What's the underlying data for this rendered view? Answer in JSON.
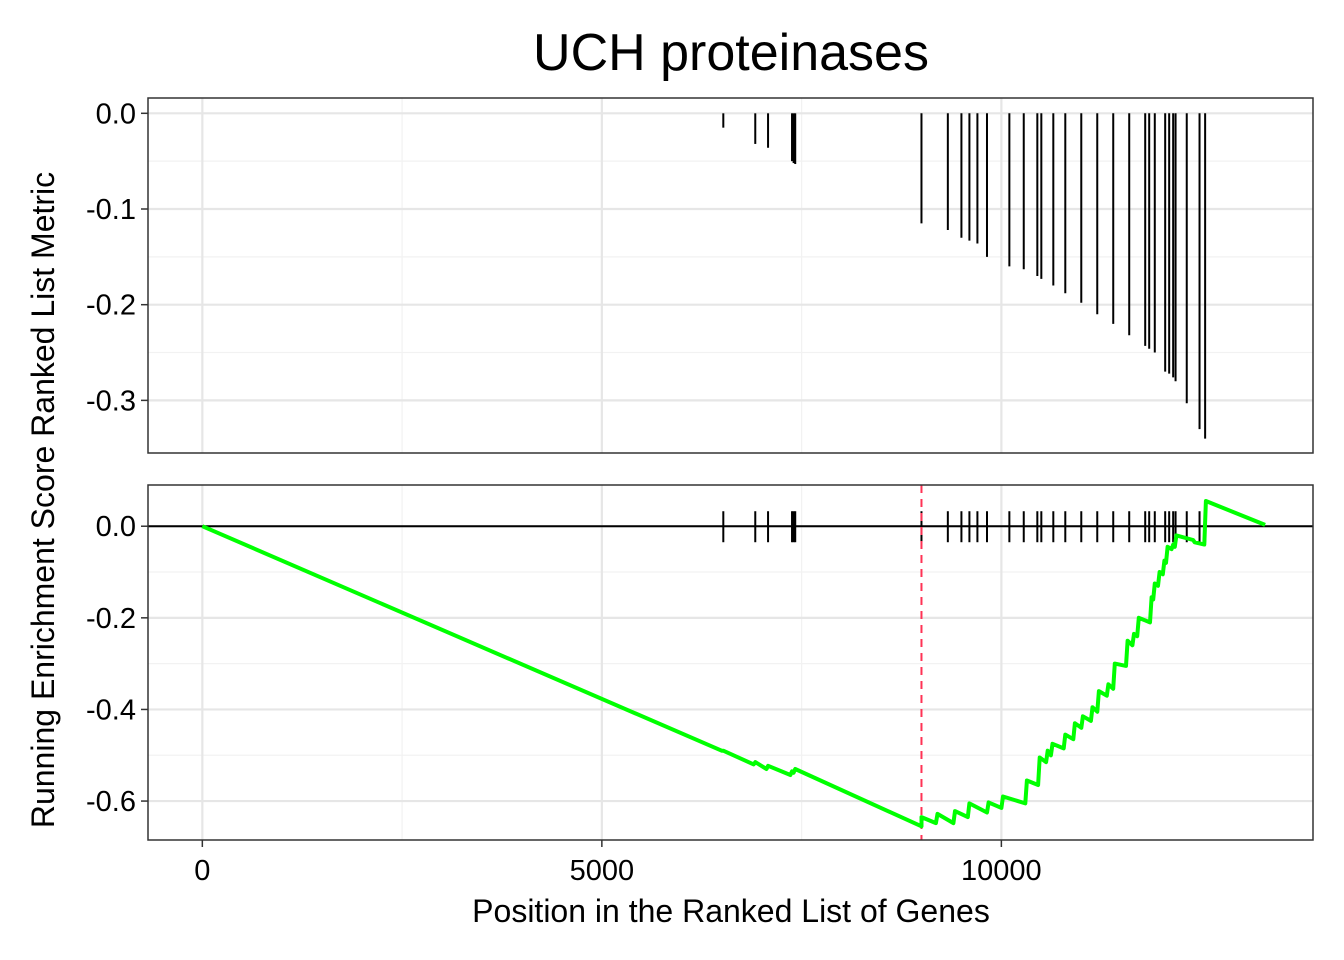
{
  "chart_data": {
    "type": "line",
    "title": "UCH proteinases",
    "xlabel": "Position in the Ranked List of Genes",
    "ylabel": "Running Enrichment Score Ranked List Metric",
    "grid": true,
    "xlim": [
      -680,
      13900
    ],
    "x_ticks": [
      0,
      5000,
      10000
    ],
    "x_tick_labels": [
      "0",
      "5000",
      "10000"
    ],
    "colors": {
      "enrichment_line": "#00ff00",
      "hit_ticks": "#000000",
      "peak_line": "#ff3355",
      "grid_major": "#e6e6e6",
      "grid_minor": "#f2f2f2",
      "panel_border": "#333333"
    },
    "panels": [
      {
        "name": "Ranked List Metric",
        "type": "bar",
        "ylim": [
          -0.355,
          0.016
        ],
        "y_ticks": [
          0.0,
          -0.1,
          -0.2,
          -0.3
        ],
        "y_tick_labels": [
          "0.0",
          "-0.1",
          "-0.2",
          "-0.3"
        ],
        "x": [
          6520,
          6920,
          7080,
          7380,
          7400,
          7420,
          9000,
          9330,
          9500,
          9600,
          9700,
          9820,
          10100,
          10280,
          10450,
          10500,
          10650,
          10800,
          11000,
          11200,
          11400,
          11600,
          11800,
          11850,
          11920,
          12050,
          12100,
          12150,
          12180,
          12320,
          12480,
          12550
        ],
        "values": [
          -0.015,
          -0.032,
          -0.036,
          -0.05,
          -0.052,
          -0.053,
          -0.115,
          -0.122,
          -0.13,
          -0.133,
          -0.136,
          -0.15,
          -0.16,
          -0.163,
          -0.17,
          -0.173,
          -0.18,
          -0.188,
          -0.198,
          -0.21,
          -0.22,
          -0.232,
          -0.243,
          -0.246,
          -0.25,
          -0.27,
          -0.272,
          -0.276,
          -0.28,
          -0.303,
          -0.33,
          -0.34
        ]
      },
      {
        "name": "Running Enrichment Score",
        "type": "line",
        "ylim": [
          -0.685,
          0.09
        ],
        "y_ticks": [
          0.0,
          -0.2,
          -0.4,
          -0.6
        ],
        "y_tick_labels": [
          "0.0",
          "-0.2",
          "-0.4",
          "-0.6"
        ],
        "zero_line": 0.0,
        "peak_position": 9000,
        "hit_positions": [
          6520,
          6920,
          7080,
          7380,
          7400,
          7420,
          9000,
          9330,
          9500,
          9600,
          9700,
          9820,
          10100,
          10280,
          10450,
          10500,
          10650,
          10800,
          11000,
          11200,
          11400,
          11600,
          11800,
          11850,
          11920,
          12050,
          12100,
          12150,
          12180,
          12320,
          12480,
          12550
        ],
        "series": [
          {
            "x": [
              0,
              6500,
              6520,
              6900,
              6920,
              7060,
              7080,
              7360,
              7380,
              7400,
              7420,
              9000,
              9000,
              9180,
              9200,
              9400,
              9420,
              9580,
              9600,
              9820,
              9840,
              10000,
              10020,
              10300,
              10320,
              10460,
              10480,
              10560,
              10580,
              10620,
              10640,
              10780,
              10800,
              10900,
              10920,
              11000,
              11020,
              11120,
              11140,
              11200,
              11220,
              11320,
              11340,
              11400,
              11420,
              11560,
              11580,
              11640,
              11660,
              11700,
              11720,
              11860,
              11880,
              11900,
              11920,
              11960,
              11980,
              12020,
              12040,
              12060,
              12080,
              12130,
              12150,
              12170,
              12190,
              12400,
              12420,
              12540,
              12560,
              13300
            ],
            "y": [
              0.0,
              -0.49,
              -0.49,
              -0.52,
              -0.515,
              -0.53,
              -0.523,
              -0.543,
              -0.535,
              -0.538,
              -0.53,
              -0.655,
              -0.635,
              -0.648,
              -0.628,
              -0.648,
              -0.622,
              -0.635,
              -0.605,
              -0.625,
              -0.603,
              -0.615,
              -0.59,
              -0.605,
              -0.555,
              -0.565,
              -0.505,
              -0.515,
              -0.49,
              -0.5,
              -0.475,
              -0.485,
              -0.455,
              -0.465,
              -0.43,
              -0.44,
              -0.415,
              -0.425,
              -0.395,
              -0.405,
              -0.36,
              -0.37,
              -0.345,
              -0.355,
              -0.3,
              -0.305,
              -0.25,
              -0.26,
              -0.235,
              -0.24,
              -0.2,
              -0.21,
              -0.155,
              -0.16,
              -0.125,
              -0.13,
              -0.1,
              -0.105,
              -0.075,
              -0.08,
              -0.045,
              -0.05,
              -0.04,
              -0.045,
              -0.02,
              -0.03,
              -0.035,
              -0.04,
              0.055,
              0.003
            ]
          }
        ]
      }
    ]
  }
}
